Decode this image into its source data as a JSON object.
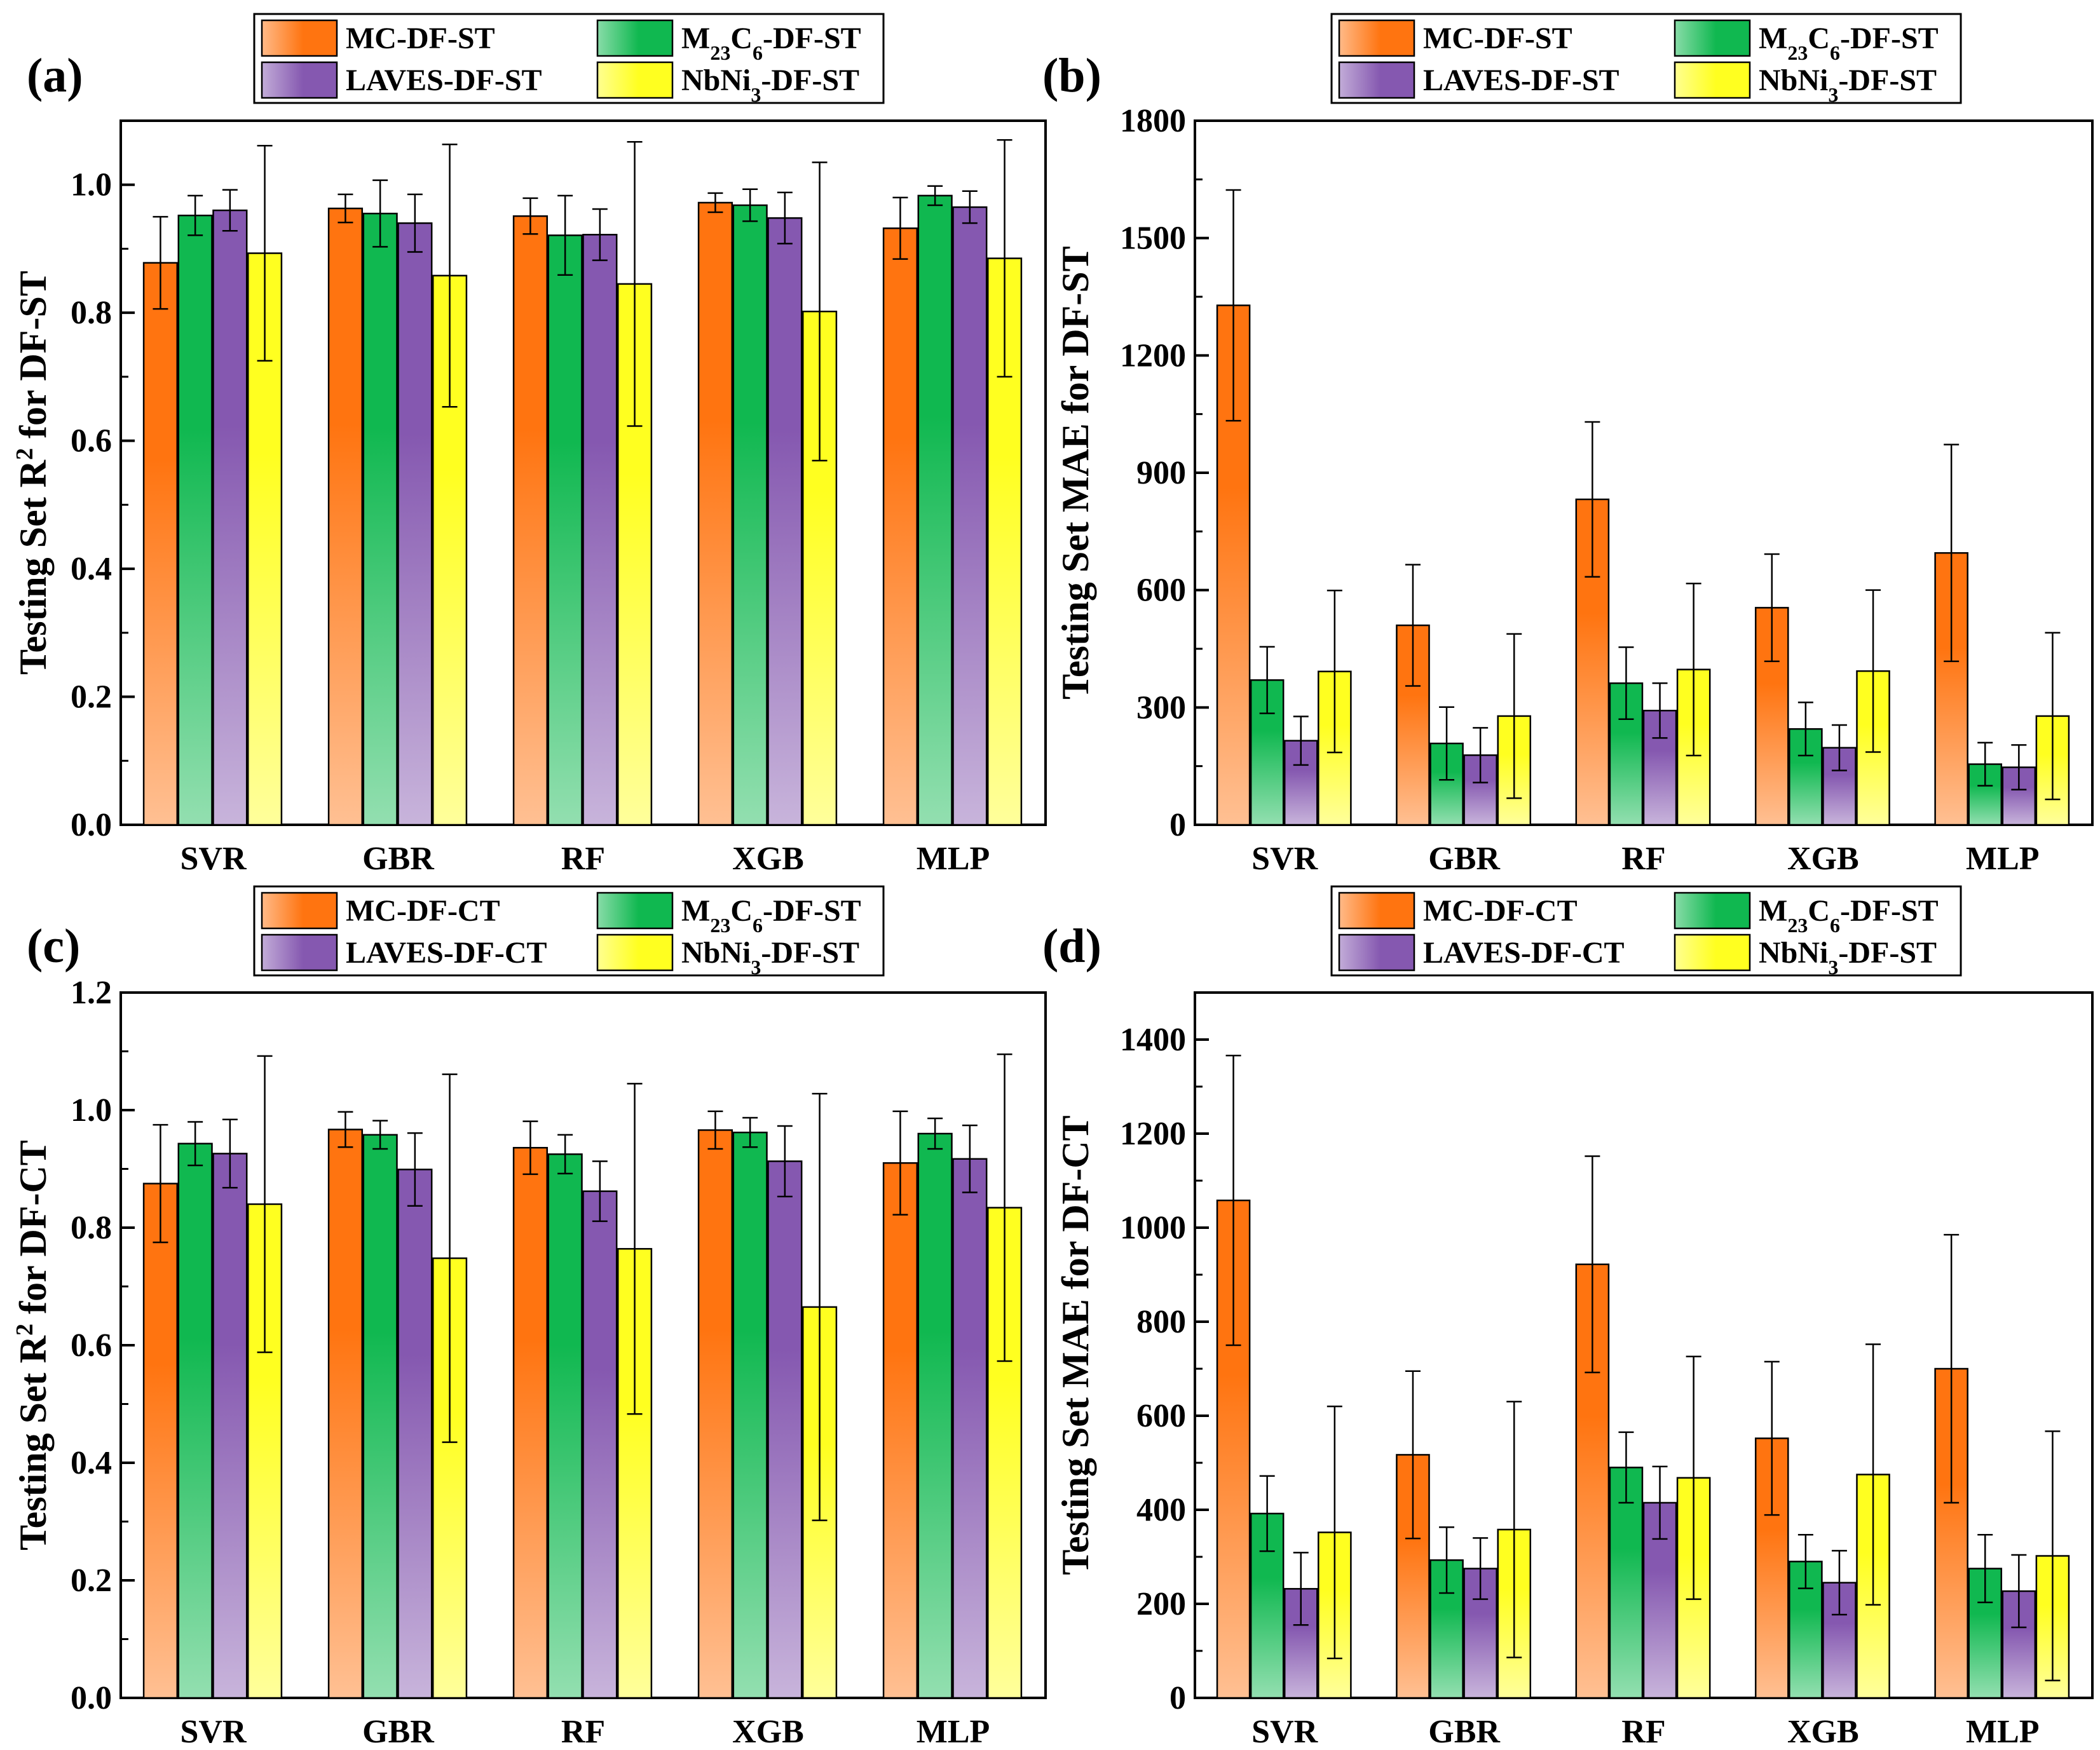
{
  "colors": {
    "orange": "#ff7410",
    "green": "#10b850",
    "purple": "#8558b0",
    "yellow": "#ffff20"
  },
  "chart_data": [
    {
      "panel": "(a)",
      "type": "bar",
      "ylabel_prefix": "Testing Set R",
      "ylabel_sup": "2",
      "ylabel_suffix": " for DF-ST",
      "ylim": [
        0,
        1.1
      ],
      "yticks": [
        "0.0",
        "0.2",
        "0.4",
        "0.6",
        "0.8",
        "1.0"
      ],
      "categories": [
        "SVR",
        "GBR",
        "RF",
        "XGB",
        "MLP"
      ],
      "legend": [
        {
          "text": "MC-DF-ST"
        },
        {
          "text_before": "M",
          "sub1": "23",
          "text_mid": "C",
          "sub2": "6",
          "text_after": "-DF-ST"
        },
        {
          "text": "LAVES-DF-ST"
        },
        {
          "text_before": "NbNi",
          "sub1": "3",
          "text_after": "-DF-ST"
        }
      ],
      "series": [
        {
          "name": "MC-DF-ST",
          "color": "orange",
          "values": [
            0.878,
            0.963,
            0.951,
            0.972,
            0.932
          ],
          "errors": [
            0.072,
            0.022,
            0.028,
            0.015,
            0.048
          ]
        },
        {
          "name": "M23C6-DF-ST",
          "color": "green",
          "values": [
            0.952,
            0.955,
            0.921,
            0.968,
            0.983
          ],
          "errors": [
            0.031,
            0.052,
            0.062,
            0.025,
            0.015
          ]
        },
        {
          "name": "LAVES-DF-ST",
          "color": "purple",
          "values": [
            0.96,
            0.94,
            0.922,
            0.948,
            0.965
          ],
          "errors": [
            0.032,
            0.045,
            0.04,
            0.04,
            0.025
          ]
        },
        {
          "name": "NbNi3-DF-ST",
          "color": "yellow",
          "values": [
            0.893,
            0.858,
            0.845,
            0.802,
            0.885
          ],
          "errors": [
            0.168,
            0.205,
            0.222,
            0.233,
            0.185
          ]
        }
      ]
    },
    {
      "panel": "(b)",
      "type": "bar",
      "ylabel_prefix": "Testing Set MAE for DF-ST",
      "ylabel_sup": "",
      "ylabel_suffix": "",
      "ylim": [
        0,
        1800
      ],
      "yticks": [
        "0",
        "300",
        "600",
        "900",
        "1200",
        "1500",
        "1800"
      ],
      "categories": [
        "SVR",
        "GBR",
        "RF",
        "XGB",
        "MLP"
      ],
      "legend": [
        {
          "text": "MC-DF-ST"
        },
        {
          "text_before": "M",
          "sub1": "23",
          "text_mid": "C",
          "sub2": "6",
          "text_after": "-DF-ST"
        },
        {
          "text": "LAVES-DF-ST"
        },
        {
          "text_before": "NbNi",
          "sub1": "3",
          "text_after": "-DF-ST"
        }
      ],
      "series": [
        {
          "name": "MC-DF-ST",
          "color": "orange",
          "values": [
            1328,
            510,
            832,
            555,
            695
          ],
          "errors": [
            295,
            155,
            198,
            137,
            277
          ]
        },
        {
          "name": "M23C6-DF-ST",
          "color": "green",
          "values": [
            370,
            208,
            362,
            245,
            155
          ],
          "errors": [
            85,
            93,
            92,
            68,
            55
          ]
        },
        {
          "name": "LAVES-DF-ST",
          "color": "purple",
          "values": [
            215,
            178,
            292,
            197,
            147
          ],
          "errors": [
            62,
            70,
            70,
            58,
            57
          ]
        },
        {
          "name": "NbNi3-DF-ST",
          "color": "yellow",
          "values": [
            392,
            278,
            397,
            393,
            278
          ],
          "errors": [
            207,
            210,
            220,
            207,
            213
          ]
        }
      ]
    },
    {
      "panel": "(c)",
      "type": "bar",
      "ylabel_prefix": "Testing Set R",
      "ylabel_sup": "2",
      "ylabel_suffix": " for DF-CT",
      "ylim": [
        0,
        1.2
      ],
      "yticks": [
        "0.0",
        "0.2",
        "0.4",
        "0.6",
        "0.8",
        "1.0",
        "1.2"
      ],
      "categories": [
        "SVR",
        "GBR",
        "RF",
        "XGB",
        "MLP"
      ],
      "legend": [
        {
          "text": "MC-DF-CT"
        },
        {
          "text_before": "M",
          "sub1": "23",
          "text_mid": "C",
          "sub2": "6",
          "text_after": "-DF-ST"
        },
        {
          "text": "LAVES-DF-CT"
        },
        {
          "text_before": "NbNi",
          "sub1": "3",
          "text_after": "-DF-ST"
        }
      ],
      "series": [
        {
          "name": "MC-DF-CT",
          "color": "orange",
          "values": [
            0.875,
            0.967,
            0.936,
            0.966,
            0.91
          ],
          "errors": [
            0.1,
            0.03,
            0.045,
            0.032,
            0.088
          ]
        },
        {
          "name": "M23C6-DF-ST",
          "color": "green",
          "values": [
            0.943,
            0.958,
            0.925,
            0.962,
            0.96
          ],
          "errors": [
            0.037,
            0.024,
            0.033,
            0.025,
            0.026
          ]
        },
        {
          "name": "LAVES-DF-CT",
          "color": "purple",
          "values": [
            0.926,
            0.899,
            0.862,
            0.913,
            0.917
          ],
          "errors": [
            0.058,
            0.062,
            0.051,
            0.06,
            0.057
          ]
        },
        {
          "name": "NbNi3-DF-ST",
          "color": "yellow",
          "values": [
            0.84,
            0.748,
            0.764,
            0.665,
            0.834
          ],
          "errors": [
            0.252,
            0.313,
            0.281,
            0.363,
            0.261
          ]
        }
      ]
    },
    {
      "panel": "(d)",
      "type": "bar",
      "ylabel_prefix": "Testing Set MAE for DF-CT",
      "ylabel_sup": "",
      "ylabel_suffix": "",
      "ylim": [
        0,
        1500
      ],
      "yticks": [
        "0",
        "200",
        "400",
        "600",
        "800",
        "1000",
        "1200",
        "1400"
      ],
      "categories": [
        "SVR",
        "GBR",
        "RF",
        "XGB",
        "MLP"
      ],
      "legend": [
        {
          "text": "MC-DF-CT"
        },
        {
          "text_before": "M",
          "sub1": "23",
          "text_mid": "C",
          "sub2": "6",
          "text_after": "-DF-ST"
        },
        {
          "text": "LAVES-DF-CT"
        },
        {
          "text_before": "NbNi",
          "sub1": "3",
          "text_after": "-DF-ST"
        }
      ],
      "series": [
        {
          "name": "MC-DF-CT",
          "color": "orange",
          "values": [
            1058,
            517,
            922,
            552,
            700
          ],
          "errors": [
            308,
            178,
            230,
            163,
            285
          ]
        },
        {
          "name": "M23C6-DF-ST",
          "color": "green",
          "values": [
            392,
            293,
            490,
            290,
            275
          ],
          "errors": [
            80,
            70,
            75,
            57,
            72
          ]
        },
        {
          "name": "LAVES-DF-CT",
          "color": "purple",
          "values": [
            232,
            275,
            415,
            245,
            227
          ],
          "errors": [
            77,
            65,
            77,
            68,
            77
          ]
        },
        {
          "name": "NbNi3-DF-ST",
          "color": "yellow",
          "values": [
            352,
            358,
            468,
            475,
            302
          ],
          "errors": [
            268,
            272,
            258,
            277,
            265
          ]
        }
      ]
    }
  ]
}
